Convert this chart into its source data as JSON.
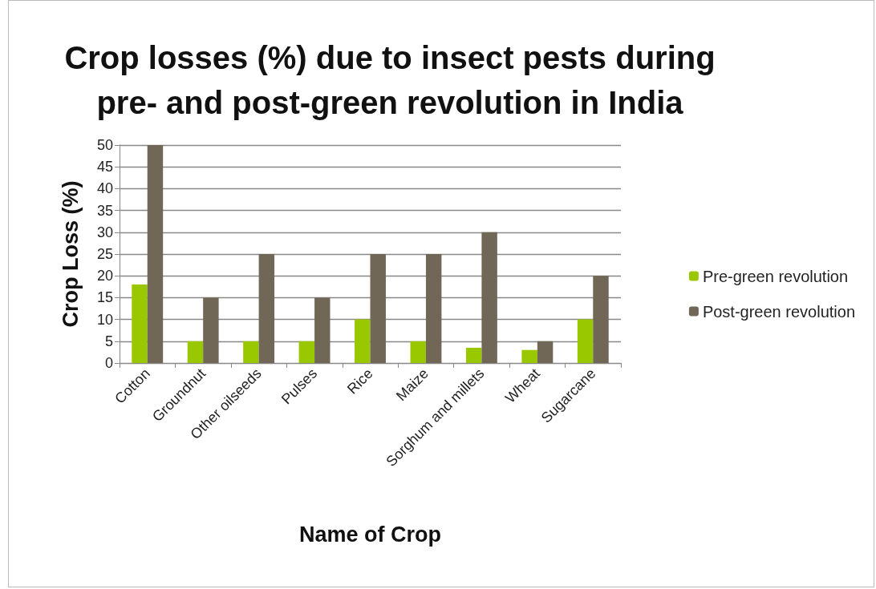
{
  "chart_data": {
    "type": "bar",
    "title": "Crop losses (%) due to insect pests during\npre- and post-green revolution in India",
    "xlabel": "Name of Crop",
    "ylabel": "Crop Loss (%)",
    "categories": [
      "Cotton",
      "Groundnut",
      "Other oilseeds",
      "Pulses",
      "Rice",
      "Maize",
      "Sorghum and millets",
      "Wheat",
      "Sugarcane"
    ],
    "series": [
      {
        "name": "Pre-green revolution",
        "color": "#99c700",
        "values": [
          18,
          5,
          5,
          5,
          10,
          5,
          3.5,
          3,
          10
        ]
      },
      {
        "name": "Post-green revolution",
        "color": "#716757",
        "values": [
          50,
          15,
          25,
          15,
          25,
          25,
          30,
          5,
          20
        ]
      }
    ],
    "ylim": [
      0,
      50
    ],
    "yticks": [
      0,
      5,
      10,
      15,
      20,
      25,
      30,
      35,
      40,
      45,
      50
    ],
    "grid": "y",
    "legend": "right"
  }
}
